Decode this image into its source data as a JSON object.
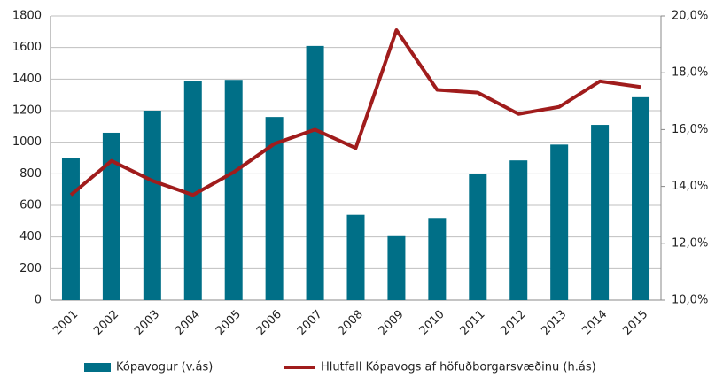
{
  "chart_data": {
    "type": "bar_line",
    "categories": [
      "2001",
      "2002",
      "2003",
      "2004",
      "2005",
      "2006",
      "2007",
      "2008",
      "2009",
      "2010",
      "2011",
      "2012",
      "2013",
      "2014",
      "2015"
    ],
    "series": [
      {
        "name": "Kópavogur (v.ás)",
        "type": "bar",
        "axis": "y",
        "color": "#006f87",
        "values": [
          900,
          1060,
          1200,
          1385,
          1395,
          1160,
          1610,
          540,
          405,
          520,
          800,
          885,
          985,
          1110,
          1285
        ]
      },
      {
        "name": "Hlutfall Kópavogs af höfuðborgarsvæðinu (h.ás)",
        "type": "line",
        "axis": "y2",
        "color": "#a01c1c",
        "values": [
          13.7,
          14.9,
          14.2,
          13.7,
          14.5,
          15.5,
          16.0,
          15.35,
          19.5,
          17.4,
          17.3,
          16.55,
          16.8,
          17.7,
          17.5
        ]
      }
    ],
    "ylim": [
      0,
      1800
    ],
    "yticks": [
      0,
      200,
      400,
      600,
      800,
      1000,
      1200,
      1400,
      1600,
      1800
    ],
    "y2lim": [
      10,
      20
    ],
    "y2ticks": [
      {
        "value": 10,
        "label": "10,0%"
      },
      {
        "value": 12,
        "label": "12,0%"
      },
      {
        "value": 14,
        "label": "14,0%"
      },
      {
        "value": 16,
        "label": "16,0%"
      },
      {
        "value": 18,
        "label": "18,0%"
      },
      {
        "value": 20,
        "label": "20,0%"
      }
    ],
    "grid": true,
    "legend": "bottom"
  }
}
